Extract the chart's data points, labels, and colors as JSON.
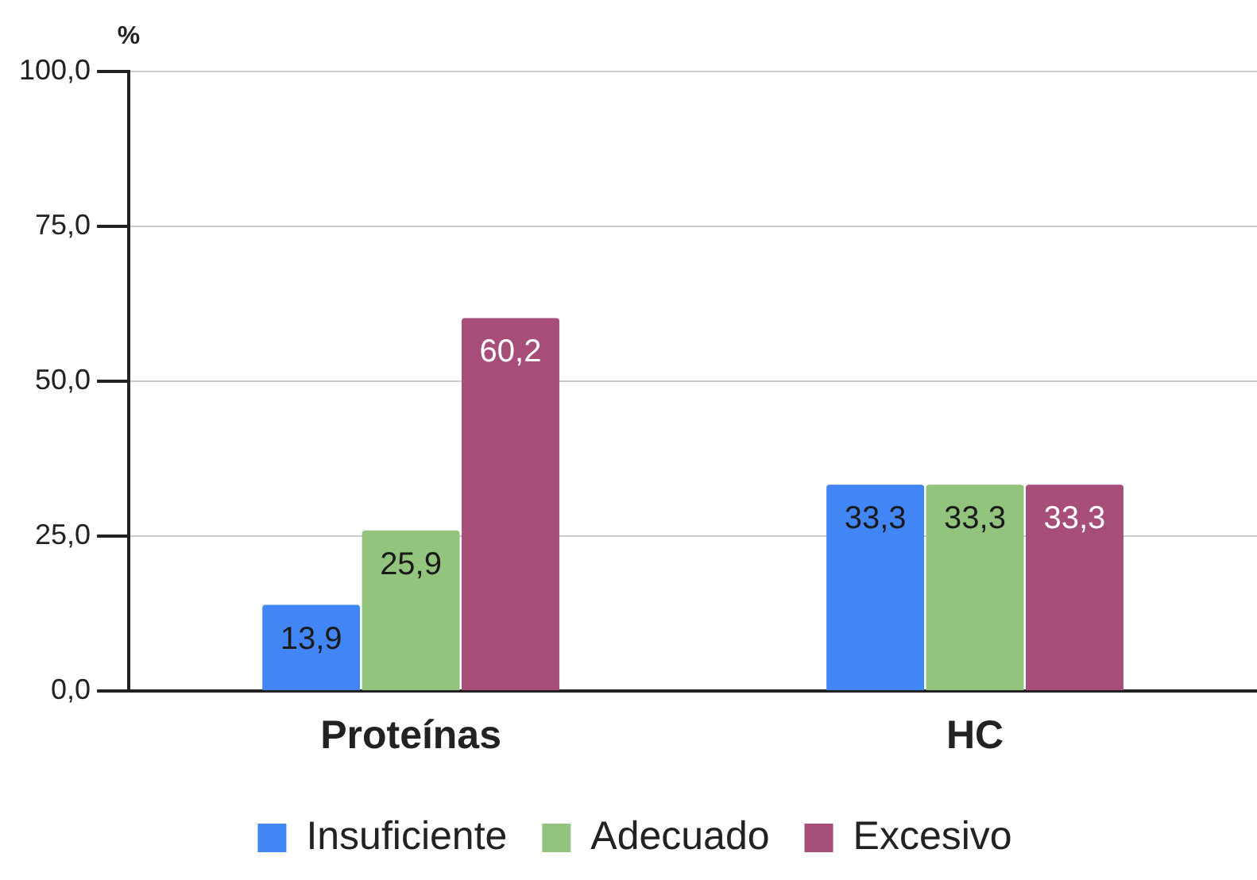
{
  "chart_data": {
    "type": "bar",
    "ylabel": "%",
    "categories": [
      "Proteínas",
      "HC"
    ],
    "series": [
      {
        "name": "Insuficiente",
        "color": "#4285f4",
        "values": [
          13.9,
          33.3
        ],
        "value_labels": [
          "13,9",
          "33,3"
        ]
      },
      {
        "name": "Adecuado",
        "color": "#93c47d",
        "values": [
          25.9,
          33.3
        ],
        "value_labels": [
          "25,9",
          "33,3"
        ]
      },
      {
        "name": "Excesivo",
        "color": "#a64d79",
        "values": [
          60.2,
          33.3
        ],
        "value_labels": [
          "60,2",
          "33,3"
        ]
      }
    ],
    "ylim": [
      0,
      100
    ],
    "yticks": [
      {
        "value": 0,
        "label": "0,0"
      },
      {
        "value": 25,
        "label": "25,0"
      },
      {
        "value": 50,
        "label": "50,0"
      },
      {
        "value": 75,
        "label": "75,0"
      },
      {
        "value": 100,
        "label": "100,0"
      }
    ],
    "grid": "y",
    "legend": "bottom"
  }
}
